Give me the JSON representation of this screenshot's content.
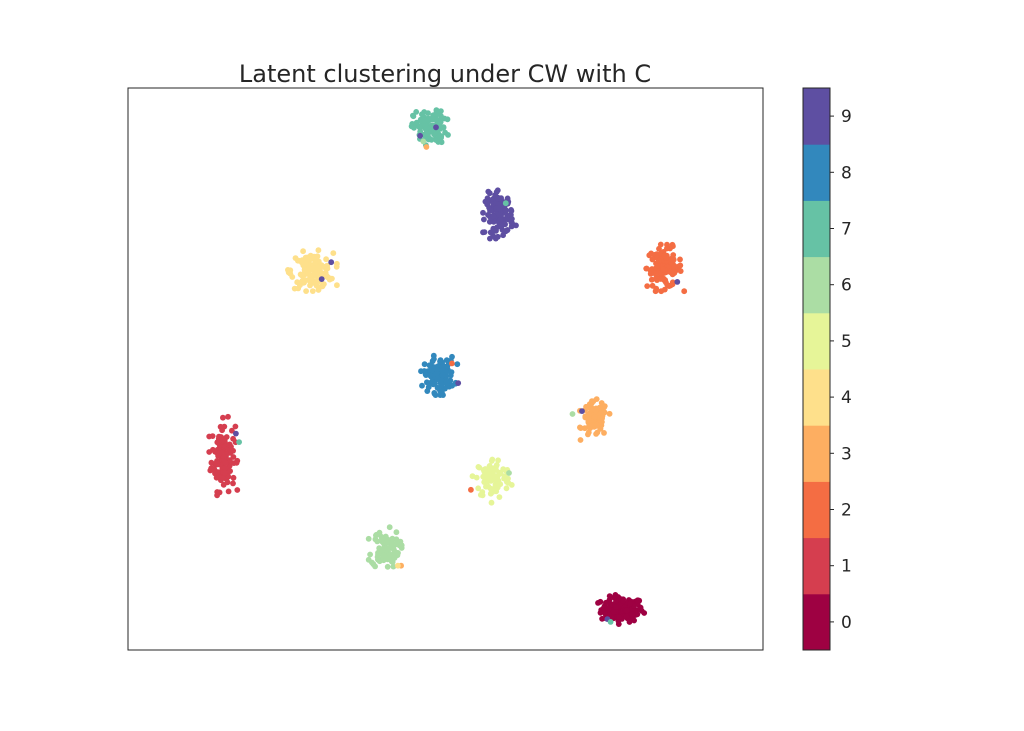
{
  "chart_data": {
    "type": "scatter",
    "title": "Latent clustering under CW with C",
    "xlabel": "",
    "ylabel": "",
    "xlim": [
      0,
      100
    ],
    "ylim": [
      0,
      100
    ],
    "axis_ticks": false,
    "grid": false,
    "colorbar": {
      "ticks": [
        "0",
        "1",
        "2",
        "3",
        "4",
        "5",
        "6",
        "7",
        "8",
        "9"
      ],
      "colors": [
        "#9e0142",
        "#d53e4f",
        "#f46d43",
        "#fdae61",
        "#fee08b",
        "#e6f598",
        "#abdda4",
        "#66c2a5",
        "#3288bd",
        "#5e4fa2"
      ]
    },
    "clusters": [
      {
        "label": 0,
        "center": [
          77.8,
          7.2
        ],
        "spread": [
          3.0,
          2.0
        ],
        "count": 130
      },
      {
        "label": 1,
        "center": [
          15.0,
          34.5
        ],
        "spread": [
          1.7,
          5.5
        ],
        "count": 130
      },
      {
        "label": 2,
        "center": [
          84.5,
          68.0
        ],
        "spread": [
          2.5,
          3.2
        ],
        "count": 120
      },
      {
        "label": 3,
        "center": [
          73.5,
          41.0
        ],
        "spread": [
          1.8,
          2.8
        ],
        "count": 90
      },
      {
        "label": 4,
        "center": [
          29.0,
          67.5
        ],
        "spread": [
          3.0,
          2.8
        ],
        "count": 130
      },
      {
        "label": 5,
        "center": [
          57.5,
          30.5
        ],
        "spread": [
          2.5,
          3.3
        ],
        "count": 90
      },
      {
        "label": 6,
        "center": [
          40.5,
          18.0
        ],
        "spread": [
          2.0,
          3.0
        ],
        "count": 90
      },
      {
        "label": 7,
        "center": [
          47.5,
          93.0
        ],
        "spread": [
          2.3,
          2.6
        ],
        "count": 110
      },
      {
        "label": 8,
        "center": [
          49.0,
          49.0
        ],
        "spread": [
          2.2,
          2.8
        ],
        "count": 120
      },
      {
        "label": 9,
        "center": [
          58.5,
          77.5
        ],
        "spread": [
          2.0,
          3.3
        ],
        "count": 120
      }
    ],
    "outliers": [
      {
        "label": 9,
        "x": 48.5,
        "y": 93.0
      },
      {
        "label": 9,
        "x": 46.0,
        "y": 91.5
      },
      {
        "label": 3,
        "x": 47.0,
        "y": 89.5
      },
      {
        "label": 6,
        "x": 46.5,
        "y": 90.5
      },
      {
        "label": 7,
        "x": 59.5,
        "y": 79.5
      },
      {
        "label": 9,
        "x": 32.0,
        "y": 69.0
      },
      {
        "label": 9,
        "x": 30.5,
        "y": 66.0
      },
      {
        "label": 9,
        "x": 86.5,
        "y": 65.5
      },
      {
        "label": 2,
        "x": 51.0,
        "y": 51.0
      },
      {
        "label": 9,
        "x": 52.0,
        "y": 47.5
      },
      {
        "label": 6,
        "x": 70.0,
        "y": 42.0
      },
      {
        "label": 9,
        "x": 71.5,
        "y": 42.5
      },
      {
        "label": 7,
        "x": 17.5,
        "y": 37.0
      },
      {
        "label": 9,
        "x": 17.0,
        "y": 38.5
      },
      {
        "label": 6,
        "x": 60.0,
        "y": 31.5
      },
      {
        "label": 2,
        "x": 54.0,
        "y": 28.5
      },
      {
        "label": 3,
        "x": 43.0,
        "y": 15.0
      },
      {
        "label": 4,
        "x": 42.5,
        "y": 15.0
      },
      {
        "label": 9,
        "x": 75.5,
        "y": 5.5
      },
      {
        "label": 7,
        "x": 76.0,
        "y": 5.0
      }
    ]
  }
}
